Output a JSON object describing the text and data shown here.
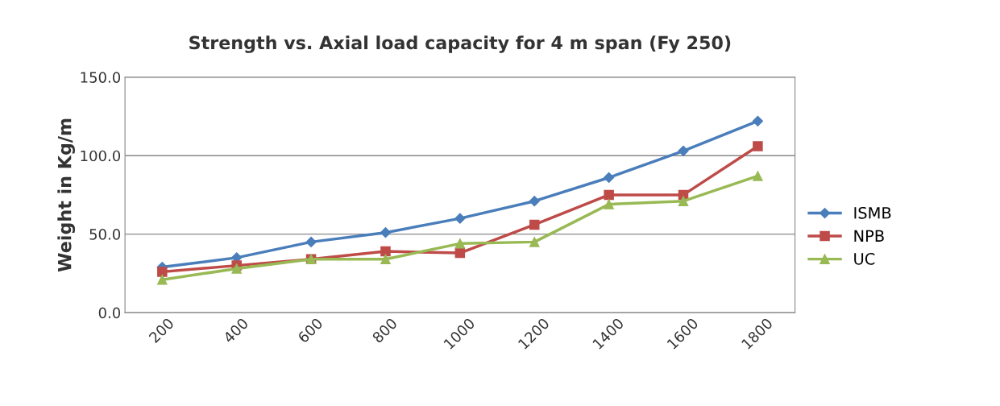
{
  "chart_data": {
    "type": "line",
    "title": "Strength vs. Axial load capacity for 4 m span (Fy 250)",
    "ylabel": "Weight in Kg/m",
    "categories": [
      "200",
      "400",
      "600",
      "800",
      "1000",
      "1200",
      "1400",
      "1600",
      "1800"
    ],
    "series": [
      {
        "name": "ISMB",
        "color": "#4a7ebb",
        "marker": "diamond",
        "values": [
          29,
          35,
          45,
          51,
          60,
          71,
          86,
          103,
          122
        ]
      },
      {
        "name": "NPB",
        "color": "#be4b48",
        "marker": "square",
        "values": [
          26,
          30,
          34,
          39,
          38,
          56,
          75,
          75,
          106
        ]
      },
      {
        "name": "UC",
        "color": "#98b954",
        "marker": "triangle",
        "values": [
          21,
          28,
          34,
          34,
          44,
          45,
          69,
          71,
          87
        ]
      }
    ],
    "ylim": [
      0,
      150
    ],
    "yticks": [
      {
        "value": 0,
        "label": "0.0"
      },
      {
        "value": 50,
        "label": "50.0"
      },
      {
        "value": 100,
        "label": "100.0"
      },
      {
        "value": 150,
        "label": "150.0"
      }
    ],
    "grid": "y",
    "legend": "right"
  }
}
